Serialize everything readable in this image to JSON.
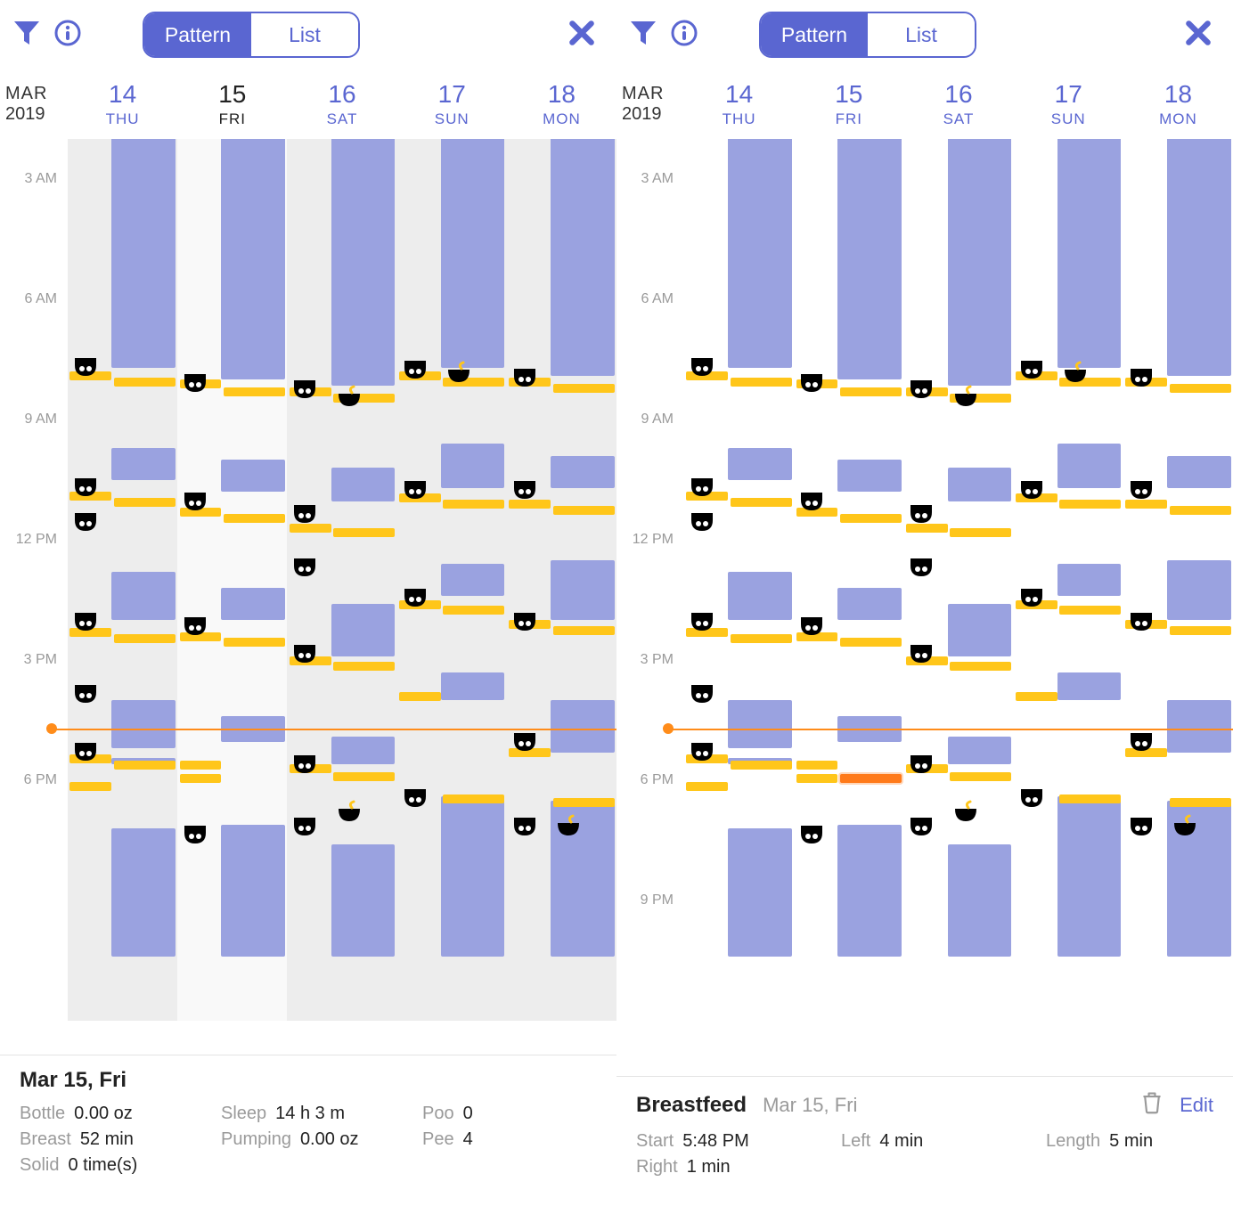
{
  "colors": {
    "brand": "#5a66d1",
    "sleepBar": "#9aa2e0",
    "feedBar": "#ffc61a",
    "selectedFeed": "#ff7a1a",
    "nowLine": "#ff8c1a",
    "diaperPee": "#6fc8e6",
    "diaperPoo": "#b97a4a",
    "bowl": "#ffc61a",
    "bgAlt": "#ededed",
    "bgHighlight": "#f9f9f9"
  },
  "typography": {
    "base_fontsize": 20,
    "header_num_fontsize": 28
  },
  "monthLabel": {
    "month": "MAR",
    "year": "2019"
  },
  "days": [
    {
      "num": "14",
      "dow": "THU"
    },
    {
      "num": "15",
      "dow": "FRI"
    },
    {
      "num": "16",
      "dow": "SAT"
    },
    {
      "num": "17",
      "dow": "SUN"
    },
    {
      "num": "18",
      "dow": "MON"
    }
  ],
  "segmented": {
    "left": "Pattern",
    "right": "List",
    "active": "left"
  },
  "timeLabels": [
    "3 AM",
    "6 AM",
    "9 AM",
    "12 PM",
    "3 PM",
    "6 PM",
    "9 PM"
  ],
  "pxPerHour": 45,
  "timeStartHour": 2,
  "nowHour": 16.7,
  "screenA": {
    "selectedDayIndex": 1,
    "timelineVisibleHeight": 808,
    "footer": {
      "title": "Mar 15, Fri",
      "stats": [
        {
          "k": "Bottle",
          "v": "0.00 oz"
        },
        {
          "k": "Sleep",
          "v": "14 h 3 m"
        },
        {
          "k": "Poo",
          "v": "0"
        },
        {
          "k": "Breast",
          "v": "52 min"
        },
        {
          "k": "Pumping",
          "v": "0.00 oz"
        },
        {
          "k": "Pee",
          "v": "4"
        },
        {
          "k": "Solid",
          "v": "0 time(s)"
        }
      ]
    }
  },
  "screenB": {
    "selectedDayIndex": -1,
    "timelineVisibleHeight": 894,
    "footer": {
      "title": "Breastfeed",
      "sub": "Mar 15, Fri",
      "edit": "Edit",
      "stats": [
        {
          "k": "Start",
          "v": "5:48 PM"
        },
        {
          "k": "Left",
          "v": "4 min"
        },
        {
          "k": "Length",
          "v": "5 min"
        },
        {
          "k": "Right",
          "v": "1 min"
        }
      ]
    }
  },
  "events": {
    "0": {
      "sleep": [
        [
          0,
          7.7
        ],
        [
          9.7,
          10.5
        ],
        [
          12.8,
          14.0
        ],
        [
          16.0,
          17.2
        ],
        [
          17.45,
          17.6
        ],
        [
          19.2,
          22.4
        ]
      ],
      "feed": [
        [
          7.8
        ],
        [
          10.8
        ],
        [
          14.2
        ],
        [
          17.35
        ],
        [
          18.05
        ]
      ],
      "feed2": [
        [
          7.95
        ],
        [
          10.95
        ],
        [
          14.35
        ],
        [
          17.5
        ]
      ],
      "peeIcons": [
        [
          7.65
        ],
        [
          10.65
        ],
        [
          14.0
        ],
        [
          17.25
        ]
      ],
      "pooIcons": [
        [
          11.5
        ],
        [
          15.8
        ]
      ],
      "bowlIcons": []
    },
    "1": {
      "sleep": [
        [
          0,
          8.0
        ],
        [
          10.0,
          10.8
        ],
        [
          13.2,
          14.0
        ],
        [
          16.4,
          17.05
        ],
        [
          19.1,
          22.4
        ]
      ],
      "feed": [
        [
          8.0
        ],
        [
          11.2
        ],
        [
          14.3
        ],
        [
          17.5
        ],
        [
          17.85
        ]
      ],
      "feed2": [
        [
          8.2
        ],
        [
          11.35
        ],
        [
          14.45
        ]
      ],
      "peeIcons": [
        [
          8.05
        ],
        [
          11.0
        ],
        [
          14.1
        ],
        [
          19.3
        ]
      ],
      "pooIcons": [],
      "bowlIcons": []
    },
    "2": {
      "sleep": [
        [
          0,
          8.15
        ],
        [
          10.2,
          11.05
        ],
        [
          13.6,
          14.9
        ],
        [
          16.9,
          17.6
        ],
        [
          19.6,
          22.4
        ]
      ],
      "feed": [
        [
          8.2
        ],
        [
          11.6
        ],
        [
          14.9
        ],
        [
          17.6
        ]
      ],
      "feed2": [
        [
          8.35
        ],
        [
          11.7
        ],
        [
          15.05
        ],
        [
          17.8
        ]
      ],
      "peeIcons": [
        [
          8.2
        ],
        [
          11.3
        ],
        [
          14.8
        ],
        [
          17.55
        ],
        [
          19.1
        ]
      ],
      "pooIcons": [
        [
          12.65
        ]
      ],
      "bowlIcons": [
        [
          8.4
        ],
        [
          18.75
        ]
      ]
    },
    "3": {
      "sleep": [
        [
          0,
          7.7
        ],
        [
          9.6,
          10.7
        ],
        [
          12.6,
          13.4
        ],
        [
          15.3,
          16.0
        ],
        [
          18.4,
          22.4
        ]
      ],
      "feed": [
        [
          7.8
        ],
        [
          10.85
        ],
        [
          13.5
        ],
        [
          15.8
        ]
      ],
      "feed2": [
        [
          7.95
        ],
        [
          11.0
        ],
        [
          13.65
        ],
        [
          18.35
        ]
      ],
      "peeIcons": [
        [
          7.7
        ],
        [
          10.7
        ],
        [
          13.4
        ],
        [
          18.4
        ]
      ],
      "pooIcons": [],
      "bowlIcons": [
        [
          7.8
        ]
      ]
    },
    "4": {
      "sleep": [
        [
          0,
          7.9
        ],
        [
          9.9,
          10.7
        ],
        [
          12.5,
          14.0
        ],
        [
          16.0,
          17.3
        ],
        [
          18.5,
          22.4
        ]
      ],
      "feed": [
        [
          7.95
        ],
        [
          11.0
        ],
        [
          14.0
        ],
        [
          17.2
        ]
      ],
      "feed2": [
        [
          8.1
        ],
        [
          11.15
        ],
        [
          14.15
        ],
        [
          18.45
        ]
      ],
      "peeIcons": [
        [
          7.9
        ],
        [
          10.7
        ],
        [
          14.0
        ],
        [
          17.0
        ],
        [
          19.1
        ]
      ],
      "pooIcons": [],
      "bowlIcons": [
        [
          19.1
        ]
      ]
    }
  },
  "selectedEvent": {
    "dayIndex": 1,
    "hour": 17.85
  }
}
